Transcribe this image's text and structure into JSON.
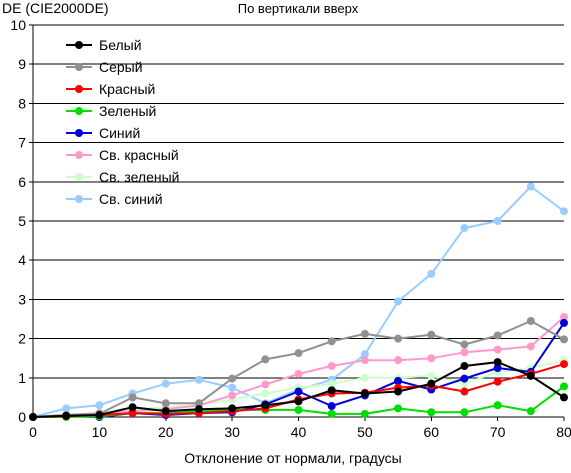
{
  "chart_data": {
    "type": "line",
    "title": "По вертикали вверх",
    "ylabel": "DE (CIE2000DE)",
    "xlabel": "Отклонение от нормали, градусы",
    "xlim": [
      0,
      80
    ],
    "ylim": [
      0,
      10
    ],
    "x_ticks": [
      "0",
      "10",
      "20",
      "30",
      "40",
      "50",
      "60",
      "70",
      "80"
    ],
    "y_ticks": [
      "0",
      "1",
      "2",
      "3",
      "4",
      "5",
      "6",
      "7",
      "8",
      "9",
      "10"
    ],
    "grid": "horizontal",
    "legend_position": "top-left",
    "x": [
      0,
      5,
      10,
      15,
      20,
      25,
      30,
      35,
      40,
      45,
      50,
      55,
      60,
      65,
      70,
      75,
      80
    ],
    "series": [
      {
        "name": "Белый",
        "color": "#000000",
        "values": [
          0,
          0.03,
          0.05,
          0.25,
          0.15,
          0.2,
          0.22,
          0.3,
          0.4,
          0.68,
          0.6,
          0.65,
          0.85,
          1.3,
          1.4,
          1.05,
          0.5
        ]
      },
      {
        "name": "Серый",
        "color": "#909090",
        "values": [
          0,
          0.05,
          0.08,
          0.5,
          0.35,
          0.35,
          0.98,
          1.47,
          1.63,
          1.93,
          2.12,
          2.0,
          2.1,
          1.85,
          2.08,
          2.45,
          1.98
        ]
      },
      {
        "name": "Красный",
        "color": "#ff0000",
        "values": [
          0,
          0.02,
          0.05,
          0.1,
          0.08,
          0.1,
          0.15,
          0.22,
          0.45,
          0.6,
          0.62,
          0.75,
          0.8,
          0.65,
          0.9,
          1.1,
          1.35
        ]
      },
      {
        "name": "Зеленый",
        "color": "#00dd00",
        "values": [
          0,
          0.0,
          0.02,
          0.1,
          0.1,
          0.15,
          0.18,
          0.18,
          0.18,
          0.08,
          0.08,
          0.22,
          0.12,
          0.12,
          0.3,
          0.15,
          0.78
        ]
      },
      {
        "name": "Синий",
        "color": "#0000dd",
        "values": [
          0,
          0.02,
          0.0,
          0.1,
          0.05,
          0.1,
          0.12,
          0.32,
          0.65,
          0.28,
          0.55,
          0.92,
          0.7,
          0.98,
          1.25,
          1.15,
          2.4
        ]
      },
      {
        "name": "Св. красный",
        "color": "#ff99cc",
        "values": [
          0,
          0.05,
          0.1,
          0.15,
          0.2,
          0.3,
          0.55,
          0.83,
          1.1,
          1.3,
          1.45,
          1.45,
          1.5,
          1.65,
          1.72,
          1.8,
          2.55
        ]
      },
      {
        "name": "Св. зеленый",
        "color": "#ccffcc",
        "values": [
          0,
          0.05,
          0.1,
          0.2,
          0.25,
          0.3,
          0.45,
          0.6,
          0.75,
          0.85,
          1.0,
          1.0,
          1.05,
          0.85,
          1.15,
          1.25,
          1.45
        ]
      },
      {
        "name": "Св. синий",
        "color": "#99ccff",
        "values": [
          0,
          0.22,
          0.3,
          0.6,
          0.85,
          0.95,
          0.75,
          0.35,
          0.7,
          0.95,
          1.6,
          2.95,
          3.65,
          4.82,
          5.0,
          5.88,
          5.25
        ]
      }
    ]
  }
}
